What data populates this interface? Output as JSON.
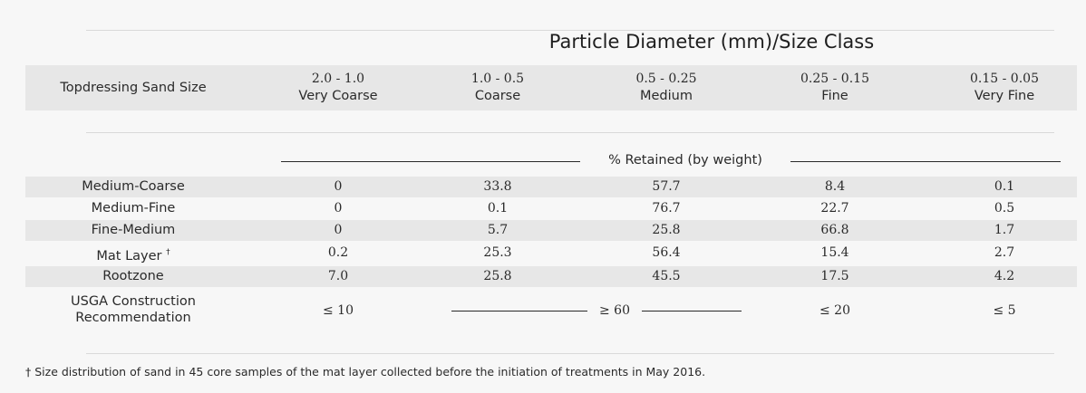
{
  "title": "Particle Diameter (mm)/Size Class",
  "header": {
    "first": "Topdressing Sand Size",
    "columns": [
      {
        "range": "2.0 - 1.0",
        "class": "Very Coarse"
      },
      {
        "range": "1.0 - 0.5",
        "class": "Coarse"
      },
      {
        "range": "0.5 - 0.25",
        "class": "Medium"
      },
      {
        "range": "0.25 - 0.15",
        "class": "Fine"
      },
      {
        "range": "0.15 - 0.05",
        "class": "Very Fine"
      }
    ]
  },
  "subheader": "% Retained (by weight)",
  "rows": [
    {
      "label": "Medium-Coarse",
      "values": [
        "0",
        "33.8",
        "57.7",
        "8.4",
        "0.1"
      ]
    },
    {
      "label": "Medium-Fine",
      "values": [
        "0",
        "0.1",
        "76.7",
        "22.7",
        "0.5"
      ]
    },
    {
      "label": "Fine-Medium",
      "values": [
        "0",
        "5.7",
        "25.8",
        "66.8",
        "1.7"
      ]
    },
    {
      "label": "Mat Layer",
      "dagger": "†",
      "values": [
        "0.2",
        "25.3",
        "56.4",
        "15.4",
        "2.7"
      ]
    },
    {
      "label": "Rootzone",
      "values": [
        "7.0",
        "25.8",
        "45.5",
        "17.5",
        "4.2"
      ]
    }
  ],
  "usga": {
    "label_line1": "USGA Construction",
    "label_line2": "Recommendation",
    "very_coarse": "≤ 10",
    "coarse_medium": "≥ 60",
    "fine": "≤ 20",
    "very_fine": "≤ 5"
  },
  "footnote": "† Size distribution of sand in 45 core samples of the mat layer collected before the initiation of treatments in May 2016."
}
